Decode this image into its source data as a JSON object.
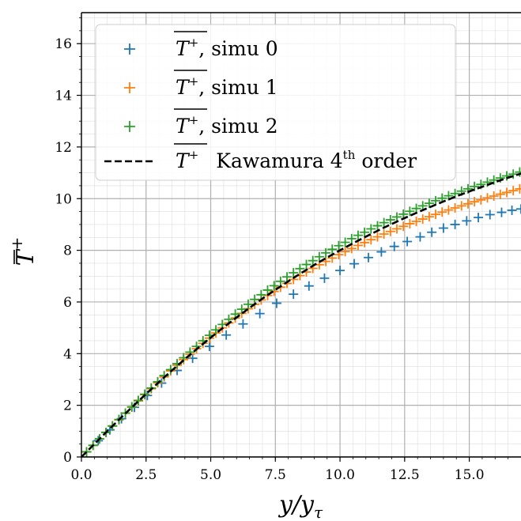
{
  "chart_data": {
    "type": "scatter",
    "xlabel": "y/y",
    "xlabel_sub": "τ",
    "ylabel": "T",
    "ylabel_sup": "+",
    "xlim": [
      0,
      17
    ],
    "ylim": [
      0,
      17.2
    ],
    "xticks": [
      0.0,
      2.5,
      5.0,
      7.5,
      10.0,
      12.5,
      15.0
    ],
    "xtick_labels": [
      "0.0",
      "2.5",
      "5.0",
      "7.5",
      "10.0",
      "12.5",
      "15.0"
    ],
    "yticks": [
      0,
      2,
      4,
      6,
      8,
      10,
      12,
      14,
      16
    ],
    "ytick_labels": [
      "0",
      "2",
      "4",
      "6",
      "8",
      "10",
      "12",
      "14",
      "16"
    ],
    "grid": true,
    "minor_grid": true,
    "legend_position": "top-left",
    "series": [
      {
        "name": "T+, simu 0",
        "legend_symbol": "T",
        "legend_sup": "+",
        "legend_rest": ", simu 0",
        "marker": "+",
        "color": "#1f77b4",
        "x": [
          0.2,
          0.65,
          1.1,
          1.55,
          2.05,
          2.55,
          3.1,
          3.7,
          4.3,
          4.95,
          5.6,
          6.25,
          6.9,
          7.55,
          8.2,
          8.8,
          9.4,
          10.0,
          10.55,
          11.1,
          11.6,
          12.1,
          12.6,
          13.1,
          13.55,
          14.0,
          14.45,
          14.9,
          15.35,
          15.8,
          16.25,
          16.65,
          17.0
        ],
        "y": [
          0.2,
          0.63,
          1.05,
          1.48,
          1.92,
          2.38,
          2.86,
          3.35,
          3.82,
          4.28,
          4.72,
          5.15,
          5.55,
          5.95,
          6.3,
          6.62,
          6.92,
          7.22,
          7.48,
          7.72,
          7.94,
          8.15,
          8.34,
          8.52,
          8.7,
          8.86,
          9.0,
          9.14,
          9.27,
          9.38,
          9.47,
          9.55,
          9.6
        ]
      },
      {
        "name": "T+, simu 1",
        "legend_symbol": "T",
        "legend_sup": "+",
        "legend_rest": ", simu 1",
        "marker": "+",
        "color": "#ff7f0e",
        "x": [
          0.2,
          0.45,
          0.7,
          0.95,
          1.2,
          1.45,
          1.7,
          1.95,
          2.2,
          2.45,
          2.7,
          2.95,
          3.2,
          3.45,
          3.7,
          3.95,
          4.2,
          4.45,
          4.7,
          4.95,
          5.2,
          5.45,
          5.7,
          5.95,
          6.2,
          6.45,
          6.7,
          6.95,
          7.2,
          7.45,
          7.7,
          7.95,
          8.2,
          8.45,
          8.7,
          8.95,
          9.2,
          9.45,
          9.7,
          9.95,
          10.2,
          10.45,
          10.7,
          10.95,
          11.2,
          11.45,
          11.7,
          11.95,
          12.2,
          12.45,
          12.7,
          12.95,
          13.2,
          13.45,
          13.7,
          13.95,
          14.2,
          14.45,
          14.7,
          14.95,
          15.2,
          15.45,
          15.7,
          15.95,
          16.2,
          16.45,
          16.7,
          16.95
        ],
        "y": [
          0.2,
          0.45,
          0.7,
          0.95,
          1.2,
          1.44,
          1.69,
          1.93,
          2.17,
          2.41,
          2.64,
          2.87,
          3.1,
          3.33,
          3.55,
          3.77,
          3.98,
          4.19,
          4.4,
          4.6,
          4.8,
          5.0,
          5.19,
          5.38,
          5.56,
          5.74,
          5.91,
          6.08,
          6.25,
          6.41,
          6.57,
          6.72,
          6.87,
          7.02,
          7.16,
          7.3,
          7.44,
          7.57,
          7.7,
          7.83,
          7.95,
          8.07,
          8.19,
          8.3,
          8.41,
          8.52,
          8.63,
          8.73,
          8.83,
          8.93,
          9.03,
          9.12,
          9.21,
          9.3,
          9.39,
          9.48,
          9.56,
          9.64,
          9.72,
          9.8,
          9.88,
          9.95,
          10.03,
          10.1,
          10.17,
          10.24,
          10.31,
          10.38
        ]
      },
      {
        "name": "T+, simu 2",
        "legend_symbol": "T",
        "legend_sup": "+",
        "legend_rest": ", simu 2",
        "marker": "+",
        "color": "#2ca02c",
        "x": [
          0.2,
          0.45,
          0.7,
          0.95,
          1.2,
          1.45,
          1.7,
          1.95,
          2.2,
          2.45,
          2.7,
          2.95,
          3.2,
          3.45,
          3.7,
          3.95,
          4.2,
          4.45,
          4.7,
          4.95,
          5.2,
          5.45,
          5.7,
          5.95,
          6.2,
          6.45,
          6.7,
          6.95,
          7.2,
          7.45,
          7.7,
          7.95,
          8.2,
          8.45,
          8.7,
          8.95,
          9.2,
          9.45,
          9.7,
          9.95,
          10.2,
          10.45,
          10.7,
          10.95,
          11.2,
          11.45,
          11.7,
          11.95,
          12.2,
          12.45,
          12.7,
          12.95,
          13.2,
          13.45,
          13.7,
          13.95,
          14.2,
          14.45,
          14.7,
          14.95,
          15.2,
          15.45,
          15.7,
          15.95,
          16.2,
          16.45,
          16.7,
          16.95
        ],
        "y": [
          0.2,
          0.45,
          0.7,
          0.95,
          1.2,
          1.45,
          1.7,
          1.94,
          2.19,
          2.43,
          2.67,
          2.91,
          3.15,
          3.38,
          3.61,
          3.84,
          4.06,
          4.28,
          4.5,
          4.71,
          4.92,
          5.13,
          5.33,
          5.53,
          5.72,
          5.91,
          6.1,
          6.28,
          6.46,
          6.63,
          6.8,
          6.97,
          7.13,
          7.29,
          7.45,
          7.6,
          7.75,
          7.9,
          8.04,
          8.18,
          8.31,
          8.45,
          8.58,
          8.7,
          8.83,
          8.95,
          9.07,
          9.18,
          9.29,
          9.4,
          9.51,
          9.62,
          9.72,
          9.82,
          9.92,
          10.02,
          10.11,
          10.2,
          10.29,
          10.38,
          10.47,
          10.55,
          10.64,
          10.72,
          10.8,
          10.88,
          10.95,
          11.03
        ]
      },
      {
        "name": "T+ Kawamura 4th order",
        "legend_symbol": "T",
        "legend_sup": "+",
        "legend_rest": "Kawamura 4",
        "legend_rest_sup": "th",
        "legend_rest_end": " order",
        "marker": "dashed-line",
        "color": "#000000",
        "x": [
          0,
          0.5,
          1,
          1.5,
          2,
          2.5,
          3,
          3.5,
          4,
          4.5,
          5,
          5.5,
          6,
          6.5,
          7,
          7.5,
          8,
          8.5,
          9,
          9.5,
          10,
          10.5,
          11,
          11.5,
          12,
          12.5,
          13,
          13.5,
          14,
          14.5,
          15,
          15.5,
          16,
          16.5,
          17
        ],
        "y": [
          0,
          0.5,
          1.0,
          1.49,
          1.97,
          2.44,
          2.9,
          3.35,
          3.79,
          4.21,
          4.62,
          5.02,
          5.4,
          5.77,
          6.13,
          6.47,
          6.8,
          7.12,
          7.43,
          7.72,
          8.0,
          8.27,
          8.53,
          8.78,
          9.02,
          9.25,
          9.47,
          9.68,
          9.89,
          10.09,
          10.28,
          10.46,
          10.64,
          10.81,
          10.97
        ]
      }
    ]
  }
}
